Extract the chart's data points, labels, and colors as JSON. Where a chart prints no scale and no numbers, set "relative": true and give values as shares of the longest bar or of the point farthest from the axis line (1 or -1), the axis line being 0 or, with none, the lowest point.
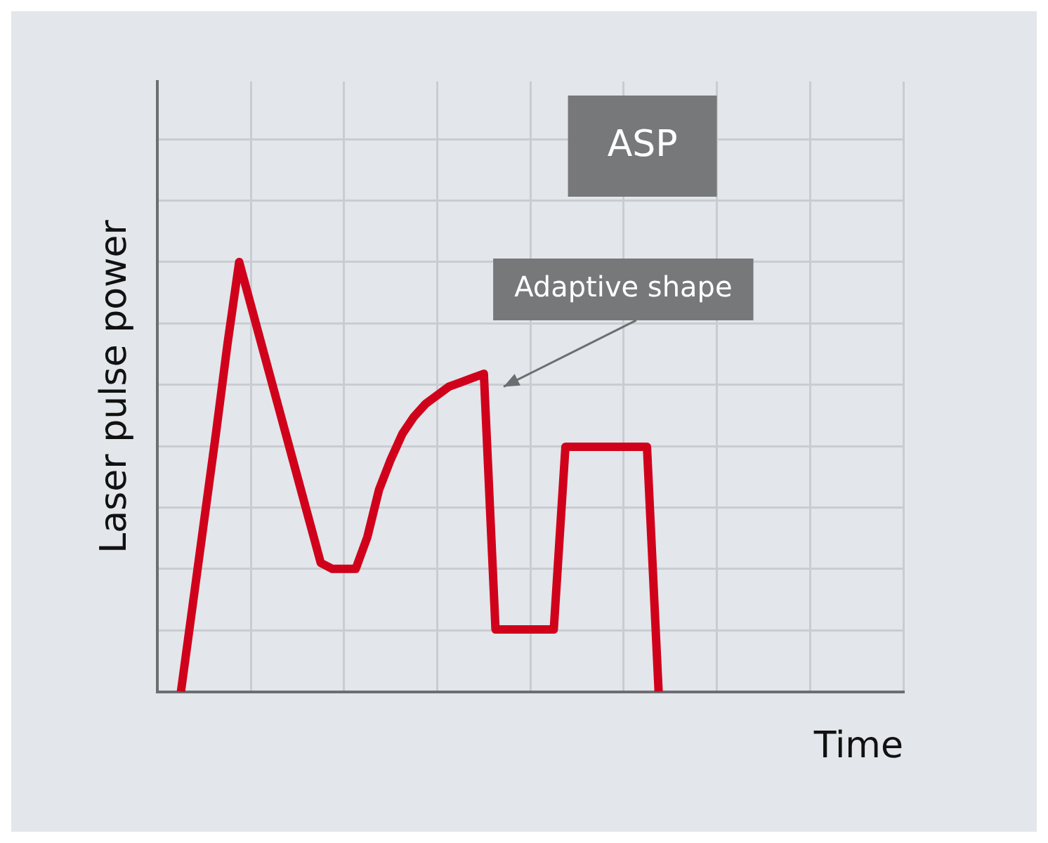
{
  "chart_data": {
    "type": "line",
    "relative": true,
    "xlabel": "Time",
    "ylabel": "Laser pulse power",
    "grid": true,
    "categories": [
      null,
      null,
      null,
      null,
      null,
      null,
      null,
      null,
      null,
      null,
      null,
      null,
      null,
      null,
      null,
      null,
      null,
      null,
      null,
      null,
      null,
      null,
      null,
      null,
      null,
      null,
      null,
      null,
      null,
      null,
      null,
      null,
      null,
      null,
      null,
      null,
      null,
      null,
      null,
      null,
      null,
      null,
      null,
      null,
      null,
      null,
      null,
      null,
      null,
      null,
      null,
      null,
      null,
      null,
      null,
      null,
      null,
      null,
      null,
      null,
      null,
      null,
      null,
      null,
      null
    ],
    "series": [
      {
        "color": "#d0021b",
        "values": [
          null,
          null,
          0,
          0.2,
          0.4,
          0.6,
          0.81,
          1,
          0.9,
          0.8,
          0.7,
          0.6,
          0.5,
          0.4,
          0.3,
          0.286,
          0.286,
          0.286,
          0.36,
          0.47,
          0.54,
          0.6,
          0.64,
          0.67,
          0.69,
          0.71,
          0.72,
          0.73,
          0.74,
          0.145,
          0.145,
          0.145,
          0.145,
          0.145,
          0.145,
          0.57,
          0.57,
          0.57,
          0.57,
          0.57,
          0.57,
          0.57,
          0.57,
          0,
          null,
          null,
          null,
          null,
          null,
          null,
          null,
          null,
          null,
          null,
          null,
          null,
          null,
          null,
          null,
          null,
          null,
          null,
          null,
          null,
          null
        ]
      }
    ],
    "annotations": [
      "ASP",
      "Adaptive shape"
    ]
  }
}
